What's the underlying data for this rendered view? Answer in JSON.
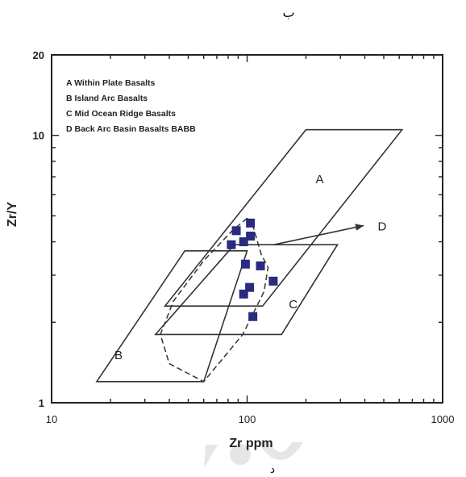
{
  "header_label": "ب",
  "footer_label": "د",
  "chart_data": {
    "type": "scatter",
    "xscale": "log",
    "yscale": "log",
    "xlim": [
      10,
      1000
    ],
    "ylim": [
      1,
      20
    ],
    "xlabel": "Zr ppm",
    "ylabel": "Zr/Y",
    "x_ticks": [
      "10",
      "100",
      "1000"
    ],
    "y_ticks": [
      "1",
      "10",
      "20"
    ],
    "legend": [
      "A Within Plate Basalts",
      "B Island Arc Basalts",
      "C Mid Ocean Ridge Basalts",
      "D Back Arc Basin Basalts BABB"
    ],
    "legend_position": "top-left",
    "field_labels": [
      "A",
      "B",
      "C",
      "D"
    ],
    "fields": {
      "A": [
        [
          38,
          2.3
        ],
        [
          200,
          10.5
        ],
        [
          620,
          10.5
        ],
        [
          120,
          2.3
        ]
      ],
      "B": [
        [
          17,
          1.2
        ],
        [
          48,
          3.7
        ],
        [
          100,
          3.7
        ],
        [
          60,
          1.2
        ]
      ],
      "C": [
        [
          34,
          1.8
        ],
        [
          86,
          3.9
        ],
        [
          290,
          3.9
        ],
        [
          150,
          1.8
        ]
      ]
    },
    "babb_envelope": [
      [
        100,
        4.9
      ],
      [
        84,
        4.4
      ],
      [
        60,
        3.4
      ],
      [
        42,
        2.4
      ],
      [
        36,
        1.8
      ],
      [
        40,
        1.4
      ],
      [
        60,
        1.2
      ],
      [
        95,
        1.8
      ],
      [
        122,
        2.6
      ],
      [
        128,
        3.2
      ],
      [
        118,
        3.6
      ],
      [
        112,
        4.1
      ],
      [
        107,
        4.6
      ],
      [
        100,
        4.9
      ]
    ],
    "arrow": {
      "from": [
        137,
        3.9
      ],
      "to": [
        395,
        4.6
      ]
    },
    "points": [
      {
        "x": 88,
        "y": 4.4
      },
      {
        "x": 104,
        "y": 4.7
      },
      {
        "x": 96,
        "y": 4.0
      },
      {
        "x": 104,
        "y": 4.2
      },
      {
        "x": 83,
        "y": 3.9
      },
      {
        "x": 98,
        "y": 3.3
      },
      {
        "x": 117,
        "y": 3.25
      },
      {
        "x": 136,
        "y": 2.85
      },
      {
        "x": 103,
        "y": 2.7
      },
      {
        "x": 96,
        "y": 2.55
      },
      {
        "x": 107,
        "y": 2.1
      }
    ],
    "colors": {
      "points": "#2a2a80",
      "lines": "#333333",
      "axes": "#222222"
    }
  }
}
